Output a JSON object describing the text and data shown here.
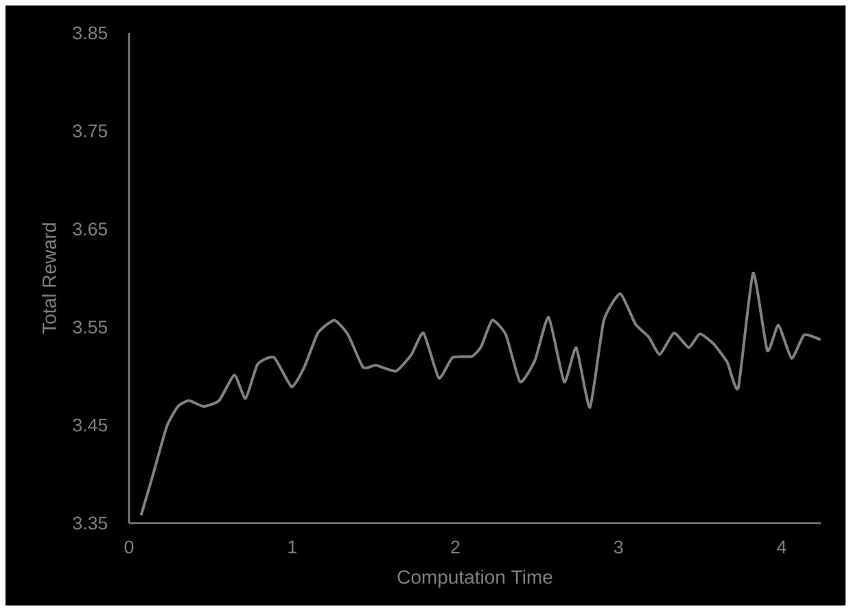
{
  "chart_data": {
    "type": "line",
    "xlabel": "Computation Time",
    "ylabel": "Total Reward",
    "xlim": [
      0,
      4.24
    ],
    "xticks": [
      0,
      1,
      2,
      3,
      4
    ],
    "ylim": [
      3.35,
      3.85
    ],
    "yticks": [
      3.35,
      3.45,
      3.55,
      3.65,
      3.75,
      3.85
    ],
    "grid": false,
    "marker": "none",
    "line_style": "solid",
    "series": [
      {
        "color": "#808080",
        "x": [
          0.074,
          0.148,
          0.232,
          0.3,
          0.367,
          0.458,
          0.552,
          0.646,
          0.714,
          0.788,
          0.889,
          0.997,
          1.074,
          1.158,
          1.259,
          1.343,
          1.434,
          1.512,
          1.636,
          1.731,
          1.805,
          1.899,
          1.983,
          2.101,
          2.158,
          2.226,
          2.31,
          2.397,
          2.488,
          2.572,
          2.667,
          2.741,
          2.825,
          2.909,
          3.01,
          3.104,
          3.185,
          3.253,
          3.34,
          3.431,
          3.498,
          3.582,
          3.667,
          3.734,
          3.825,
          3.912,
          3.98,
          4.061,
          4.138,
          4.239
        ],
        "values": [
          3.358,
          3.4,
          3.449,
          3.469,
          3.475,
          3.469,
          3.475,
          3.501,
          3.477,
          3.512,
          3.519,
          3.489,
          3.509,
          3.544,
          3.557,
          3.542,
          3.509,
          3.511,
          3.505,
          3.522,
          3.544,
          3.498,
          3.519,
          3.52,
          3.53,
          3.557,
          3.542,
          3.494,
          3.516,
          3.56,
          3.494,
          3.529,
          3.468,
          3.556,
          3.584,
          3.553,
          3.54,
          3.522,
          3.544,
          3.529,
          3.543,
          3.533,
          3.514,
          3.488,
          3.605,
          3.526,
          3.552,
          3.518,
          3.542,
          3.537
        ]
      }
    ]
  }
}
